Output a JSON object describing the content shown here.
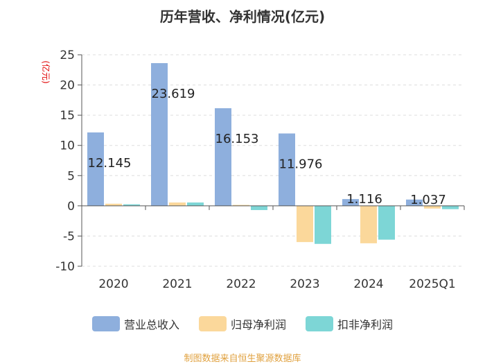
{
  "chart_data": {
    "type": "bar",
    "title": "历年营收、净利情况(亿元)",
    "ylabel": "(亿元)",
    "xlabel": "",
    "ylim": [
      -10,
      25
    ],
    "yticks": [
      -10,
      -5,
      0,
      5,
      10,
      15,
      20,
      25
    ],
    "categories": [
      "2020",
      "2021",
      "2022",
      "2023",
      "2024",
      "2025Q1"
    ],
    "series": [
      {
        "name": "营业总收入",
        "color": "#8eafdd",
        "values": [
          12.145,
          23.619,
          16.153,
          11.976,
          1.116,
          1.037
        ]
      },
      {
        "name": "归母净利润",
        "color": "#fbd89b",
        "values": [
          0.35,
          0.55,
          0.15,
          -6.0,
          -6.2,
          -0.45
        ]
      },
      {
        "name": "扣非净利润",
        "color": "#7dd6d6",
        "values": [
          0.25,
          0.55,
          -0.7,
          -6.3,
          -5.6,
          -0.55
        ]
      }
    ],
    "data_labels": [
      "12.145",
      "23.619",
      "16.153",
      "11.976",
      "1.116",
      "1.037"
    ]
  },
  "source": "制图数据来自恒生聚源数据库"
}
